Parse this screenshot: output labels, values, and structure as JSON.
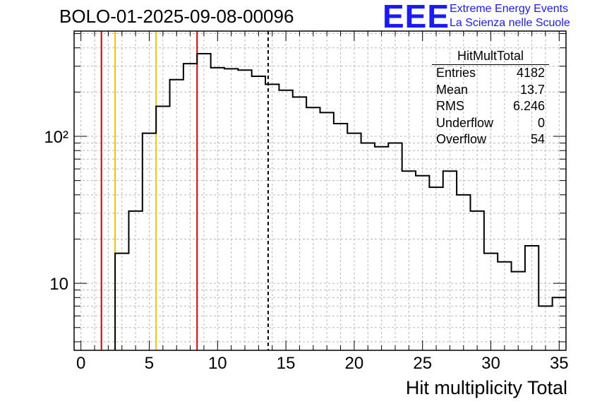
{
  "run_title": "BOLO-01-2025-09-08-00096",
  "logo": {
    "letters": "EEE",
    "line1": "Extreme Energy Events",
    "line2": "La Scienza nelle Scuole",
    "color": "#1a1aff"
  },
  "stats_box": {
    "title": "HitMultTotal",
    "rows": [
      {
        "label": "Entries",
        "value": "4182"
      },
      {
        "label": "Mean",
        "value": "13.7"
      },
      {
        "label": "RMS",
        "value": "6.246"
      },
      {
        "label": "Underflow",
        "value": "0"
      },
      {
        "label": "Overflow",
        "value": "54"
      }
    ]
  },
  "chart_data": {
    "type": "histogram",
    "xlabel": "Hit multiplicity Total",
    "ylabel": "",
    "xlim": [
      -0.5,
      35.5
    ],
    "ylim": [
      3.5,
      520
    ],
    "log_y": true,
    "grid": true,
    "x_ticks": [
      "0",
      "5",
      "10",
      "15",
      "20",
      "25",
      "30",
      "35"
    ],
    "y_tick_labels": [
      "10",
      "10²"
    ],
    "bin_width": 1,
    "bins": [
      {
        "center": 0,
        "count": 0
      },
      {
        "center": 1,
        "count": 0
      },
      {
        "center": 2,
        "count": 0
      },
      {
        "center": 3,
        "count": 16
      },
      {
        "center": 4,
        "count": 31
      },
      {
        "center": 5,
        "count": 105
      },
      {
        "center": 6,
        "count": 160
      },
      {
        "center": 7,
        "count": 243
      },
      {
        "center": 8,
        "count": 312
      },
      {
        "center": 9,
        "count": 365
      },
      {
        "center": 10,
        "count": 293
      },
      {
        "center": 11,
        "count": 288
      },
      {
        "center": 12,
        "count": 282
      },
      {
        "center": 13,
        "count": 256
      },
      {
        "center": 14,
        "count": 226
      },
      {
        "center": 15,
        "count": 206
      },
      {
        "center": 16,
        "count": 185
      },
      {
        "center": 17,
        "count": 157
      },
      {
        "center": 18,
        "count": 145
      },
      {
        "center": 19,
        "count": 122
      },
      {
        "center": 20,
        "count": 105
      },
      {
        "center": 21,
        "count": 90
      },
      {
        "center": 22,
        "count": 85
      },
      {
        "center": 23,
        "count": 90
      },
      {
        "center": 24,
        "count": 58
      },
      {
        "center": 25,
        "count": 54
      },
      {
        "center": 26,
        "count": 45
      },
      {
        "center": 27,
        "count": 58
      },
      {
        "center": 28,
        "count": 40
      },
      {
        "center": 29,
        "count": 31
      },
      {
        "center": 30,
        "count": 16
      },
      {
        "center": 31,
        "count": 14
      },
      {
        "center": 32,
        "count": 12
      },
      {
        "center": 33,
        "count": 18
      },
      {
        "center": 34,
        "count": 7
      },
      {
        "center": 35,
        "count": 8
      }
    ],
    "reference_lines": [
      {
        "x": 1.5,
        "color": "#dd0000",
        "style": "solid"
      },
      {
        "x": 2.5,
        "color": "#f5c400",
        "style": "solid"
      },
      {
        "x": 5.5,
        "color": "#f5c400",
        "style": "solid"
      },
      {
        "x": 8.5,
        "color": "#dd0000",
        "style": "solid"
      },
      {
        "x": 13.7,
        "color": "#000000",
        "style": "dashed"
      }
    ]
  }
}
